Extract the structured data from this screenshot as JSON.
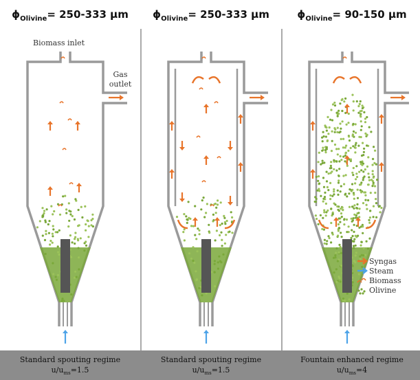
{
  "headers": [
    {
      "symbol": "ϕ",
      "subscript": "Olivine",
      "text": "= 250-333 μm"
    },
    {
      "symbol": "ϕ",
      "subscript": "Olivine",
      "text": "= 250-333 μm"
    },
    {
      "symbol": "ϕ",
      "subscript": "Olivine",
      "text": "= 90-150 μm"
    }
  ],
  "labels": {
    "biomass_inlet": "Biomass inlet",
    "gas_outlet": [
      "Gas",
      "outlet"
    ]
  },
  "legend": [
    "Syngas",
    "Steam",
    "Biomass",
    "Olivine"
  ],
  "regimes": [
    {
      "name": "Standard spouting regime",
      "ratio": "u/u",
      "ratio_subscript": "ms",
      "ratio_value": "=1.5"
    },
    {
      "name": "Standard spouting regime",
      "ratio": "u/u",
      "ratio_subscript": "ms",
      "ratio_value": "=1.5"
    },
    {
      "name": "Fountain enhanced regime",
      "ratio": "u/u",
      "ratio_subscript": "ms",
      "ratio_value": "=4"
    }
  ]
}
